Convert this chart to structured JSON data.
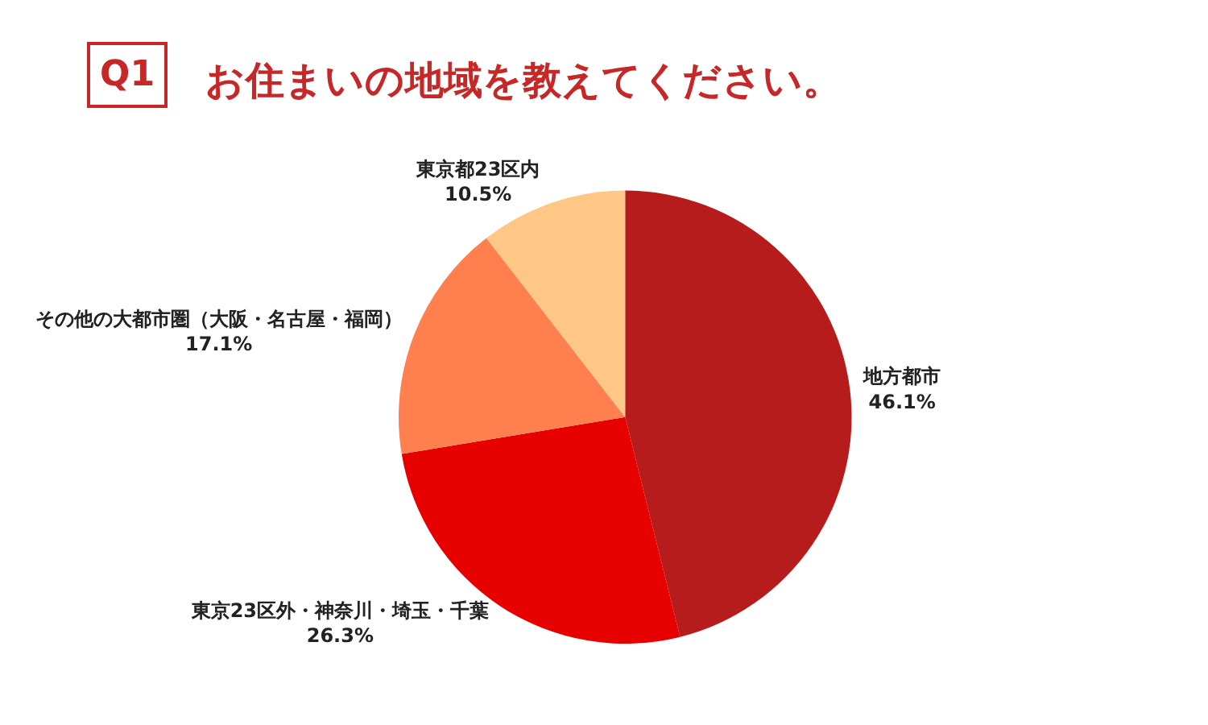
{
  "chart_data": {
    "type": "pie",
    "title": "お住まいの地域を教えてください。",
    "annotations": [
      "Q1"
    ],
    "categories": [
      "地方都市",
      "東京23区外・神奈川・埼玉・千葉",
      "その他の大都市圏（大阪・名古屋・福岡）",
      "東京都23区内"
    ],
    "values": [
      46.1,
      26.3,
      17.1,
      10.5
    ],
    "colors": [
      "#b71c1c",
      "#e60000",
      "#ff7f4f",
      "#ffc785"
    ],
    "value_labels": [
      "46.1%",
      "26.3%",
      "17.1%",
      "10.5%"
    ],
    "legend": false
  }
}
